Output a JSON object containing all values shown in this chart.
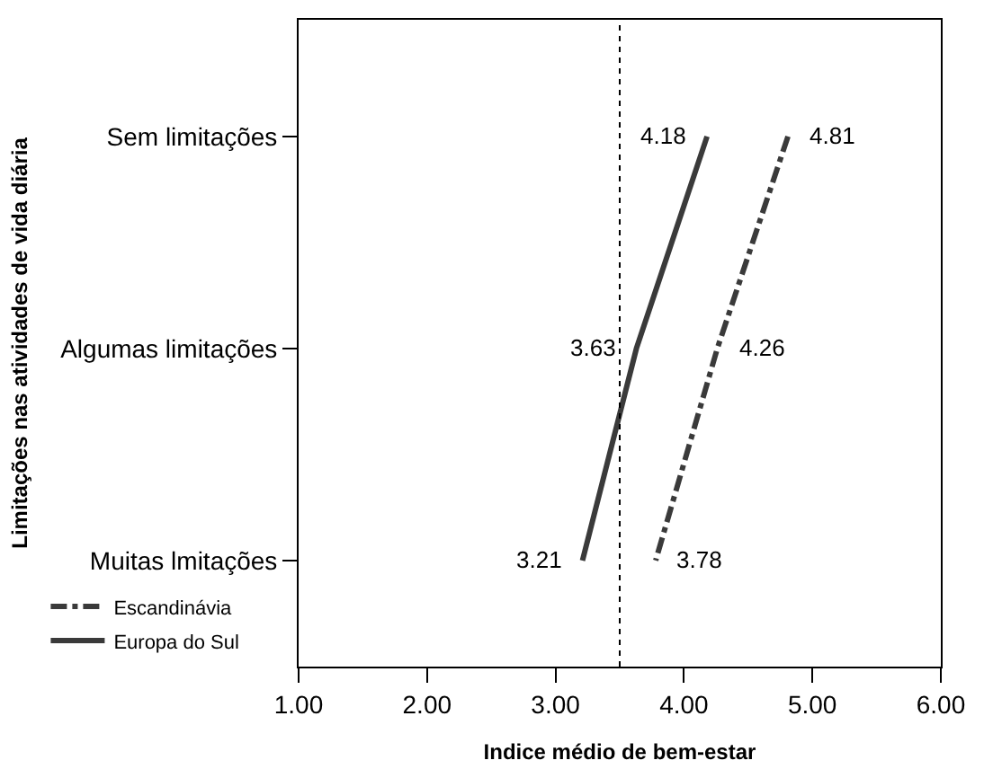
{
  "chart_data": {
    "type": "line",
    "orientation": "horizontal",
    "xlabel": "Indice médio de bem-estar",
    "ylabel": "Limitações nas atividades de vida diária",
    "categories": [
      "Sem limitações",
      "Algumas limitações",
      "Muitas lmitações"
    ],
    "series": [
      {
        "name": "Escandinávia",
        "color": "#3a3a3a",
        "line_style": "dashed",
        "values": [
          4.81,
          4.26,
          3.78
        ]
      },
      {
        "name": "Europa do Sul",
        "color": "#3a3a3a",
        "line_style": "solid",
        "values": [
          4.18,
          3.63,
          3.21
        ]
      }
    ],
    "xlim": [
      1,
      6
    ],
    "xticks": [
      {
        "value": 1,
        "label": "1.00"
      },
      {
        "value": 2,
        "label": "2.00"
      },
      {
        "value": 3,
        "label": "3.00"
      },
      {
        "value": 4,
        "label": "4.00"
      },
      {
        "value": 5,
        "label": "5.00"
      },
      {
        "value": 6,
        "label": "6.00"
      }
    ],
    "ref_lines": [
      {
        "axis": "x",
        "value": 3.5,
        "label": null,
        "color": "#000000",
        "line_style": "dotted"
      }
    ],
    "data_labels": true,
    "legend": "bottom left",
    "marker": "none"
  }
}
